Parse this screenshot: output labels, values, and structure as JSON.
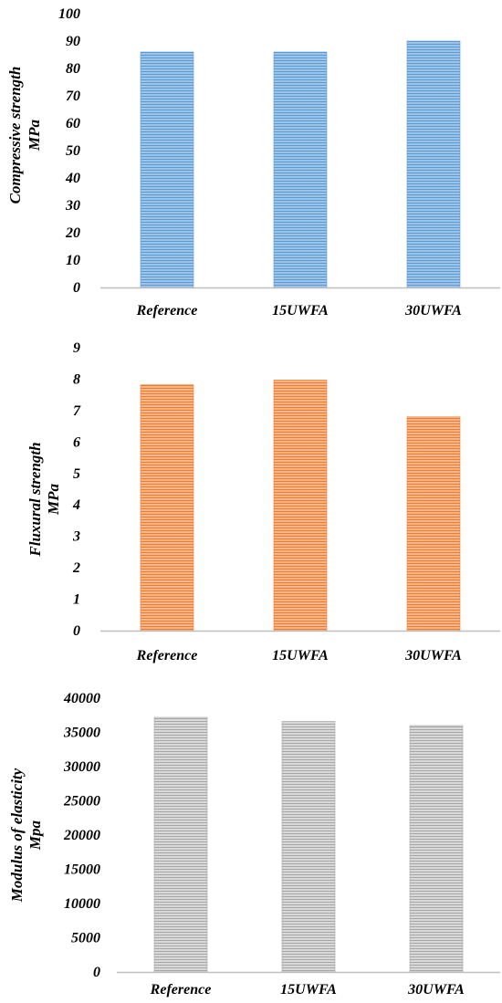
{
  "chart_data": [
    {
      "type": "bar",
      "categories": [
        "Reference",
        "15UWFA",
        "30UWFA"
      ],
      "values": [
        86,
        86,
        90
      ],
      "ylabel_line1": "Compressive strength",
      "ylabel_line2": "MPa",
      "ylim": [
        0,
        100
      ],
      "ticks": [
        0,
        10,
        20,
        30,
        40,
        50,
        60,
        70,
        80,
        90,
        100
      ],
      "bar_color": "#9dc3e6",
      "stripe_color": "#5b9bd5",
      "grid": false
    },
    {
      "type": "bar",
      "categories": [
        "Reference",
        "15UWFA",
        "30UWFA"
      ],
      "values": [
        7.82,
        7.97,
        6.8
      ],
      "ylabel_line1": "Fluxural strength",
      "ylabel_line2": "MPa",
      "ylim": [
        0,
        9
      ],
      "ticks": [
        0,
        1,
        2,
        3,
        4,
        5,
        6,
        7,
        8,
        9
      ],
      "bar_color": "#f8b58a",
      "stripe_color": "#ed7d31",
      "grid": false
    },
    {
      "type": "bar",
      "categories": [
        "Reference",
        "15UWFA",
        "30UWFA"
      ],
      "values": [
        37200,
        36600,
        36000
      ],
      "ylabel_line1": "Modulus of elasticity",
      "ylabel_line2": "Mpa",
      "ylim": [
        0,
        40000
      ],
      "ticks": [
        0,
        5000,
        10000,
        15000,
        20000,
        25000,
        30000,
        35000,
        40000
      ],
      "bar_color": "#d9d9d9",
      "stripe_color": "#a6a6a6",
      "grid": false
    }
  ]
}
